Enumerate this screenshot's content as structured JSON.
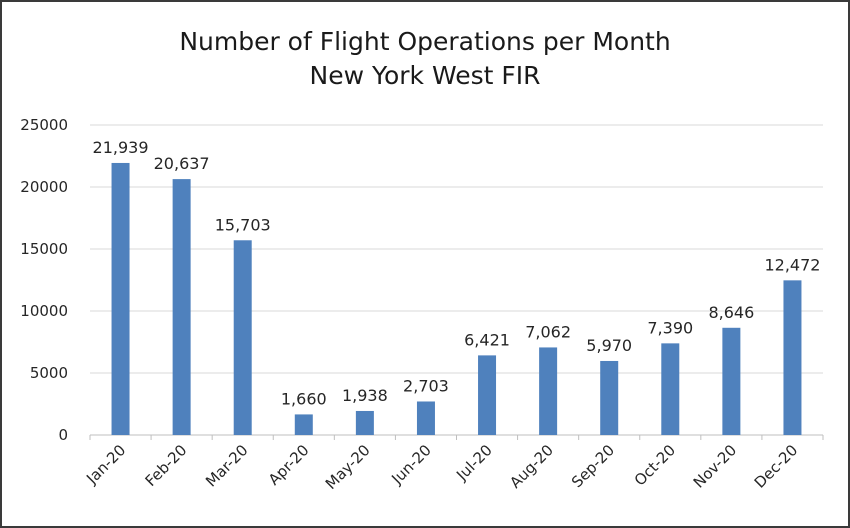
{
  "chart_data": {
    "type": "bar",
    "title": "Number of Flight Operations per Month",
    "subtitle": "New York West FIR",
    "xlabel": "",
    "ylabel": "",
    "categories": [
      "Jan-20",
      "Feb-20",
      "Mar-20",
      "Apr-20",
      "May-20",
      "Jun-20",
      "Jul-20",
      "Aug-20",
      "Sep-20",
      "Oct-20",
      "Nov-20",
      "Dec-20"
    ],
    "values": [
      21939,
      20637,
      15703,
      1660,
      1938,
      2703,
      6421,
      7062,
      5970,
      7390,
      8646,
      12472
    ],
    "data_labels": [
      "21,939",
      "20,637",
      "15,703",
      "1,660",
      "1,938",
      "2,703",
      "6,421",
      "7,062",
      "5,970",
      "7,390",
      "8,646",
      "12,472"
    ],
    "ylim": [
      0,
      25000
    ],
    "yticks": [
      0,
      5000,
      10000,
      15000,
      20000,
      25000
    ],
    "grid": true,
    "bar_color": "#4f81bd",
    "grid_color": "#d9d9d9",
    "axis_color": "#bfbfbf"
  }
}
